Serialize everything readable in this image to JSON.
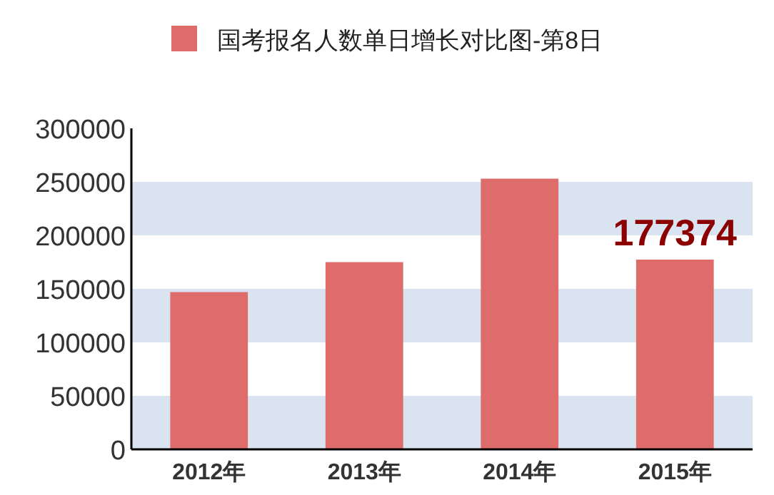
{
  "chart_data": {
    "type": "bar",
    "categories": [
      "2012年",
      "2013年",
      "2014年",
      "2015年"
    ],
    "series": [
      {
        "name": "国考报名人数单日增长对比图-第8日",
        "color": "#dd6c6b",
        "values": [
          147000,
          175000,
          253000,
          177374
        ],
        "value_labels": [
          null,
          null,
          null,
          "177374"
        ]
      }
    ],
    "ylim": [
      0,
      300000
    ],
    "yticks": [
      0,
      50000,
      100000,
      150000,
      200000,
      250000,
      300000
    ],
    "bands": [
      {
        "axis": "y",
        "from": 0,
        "to": 50000,
        "color": "#d9e4f0"
      },
      {
        "axis": "y",
        "from": 100000,
        "to": 150000,
        "color": "#d9e4f0"
      },
      {
        "axis": "y",
        "from": 200000,
        "to": 250000,
        "color": "#d9e4f0"
      }
    ],
    "legend": "top",
    "grid": false
  }
}
